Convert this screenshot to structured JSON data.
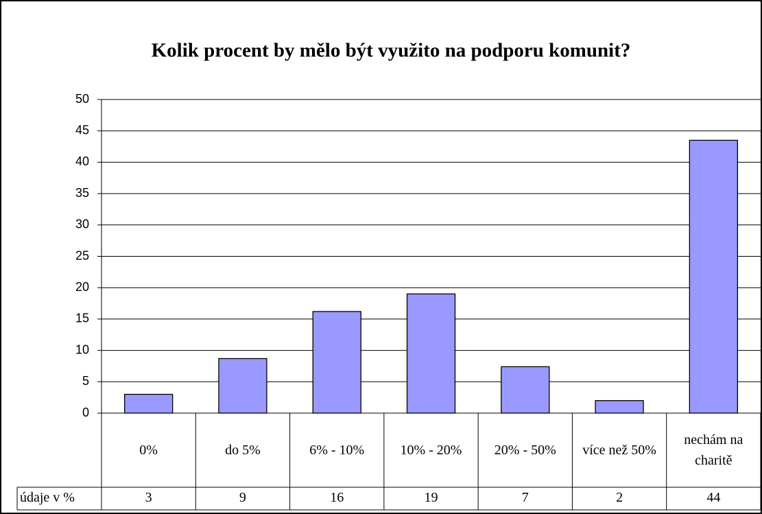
{
  "chart_data": {
    "type": "bar",
    "title": "Kolik procent by mělo být využito na podporu komunit?",
    "categories": [
      "0%",
      "do 5%",
      "6% - 10%",
      "10% - 20%",
      "20% - 50%",
      "více než 50%",
      "nechám na charitě"
    ],
    "series": [
      {
        "name": "údaje v %",
        "color": "#9999ff",
        "values": [
          3,
          8.7,
          16.2,
          19,
          7.4,
          2,
          43.5
        ],
        "value_labels": [
          "3",
          "9",
          "16",
          "19",
          "7",
          "2",
          "44"
        ]
      }
    ],
    "ylim": [
      0,
      50
    ],
    "yticks": [
      0,
      5,
      10,
      15,
      20,
      25,
      30,
      35,
      40,
      45,
      50
    ],
    "grid": true
  }
}
